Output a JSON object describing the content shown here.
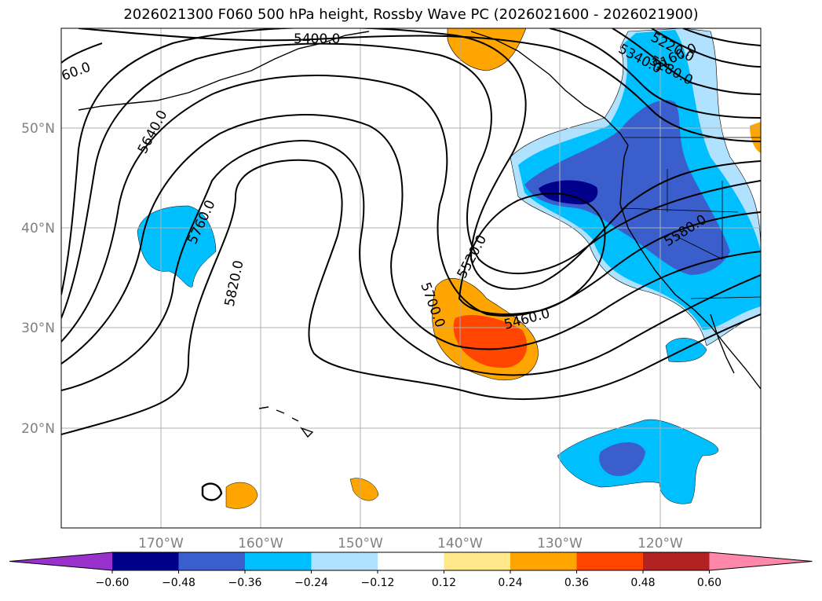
{
  "title": "2026021300 F060 500 hPa height, Rossby Wave PC (2026021600 - 2026021900)",
  "map": {
    "lat_labels": [
      "50°N",
      "40°N",
      "30°N",
      "20°N"
    ],
    "lon_labels": [
      "170°W",
      "160°W",
      "150°W",
      "140°W",
      "130°W",
      "120°W"
    ],
    "contour_labels": [
      "5160.0",
      "5220.0",
      "5280.0",
      "5340.0",
      "5400.0",
      "5460.0",
      "5520.0",
      "5580.0",
      "5640.0",
      "5700.0",
      "5760.0",
      "5820.0",
      "60.0"
    ]
  },
  "colorbar": {
    "ticks": [
      "−0.60",
      "−0.48",
      "−0.36",
      "−0.24",
      "−0.12",
      "0.12",
      "0.24",
      "0.36",
      "0.48",
      "0.60"
    ],
    "colors": [
      "#9932cc",
      "#00008b",
      "#3a5fcd",
      "#00bfff",
      "#b0e2ff",
      "#ffffff",
      "#ffe88a",
      "#ffa500",
      "#ff4500",
      "#b22222",
      "#ff88aa"
    ]
  }
}
